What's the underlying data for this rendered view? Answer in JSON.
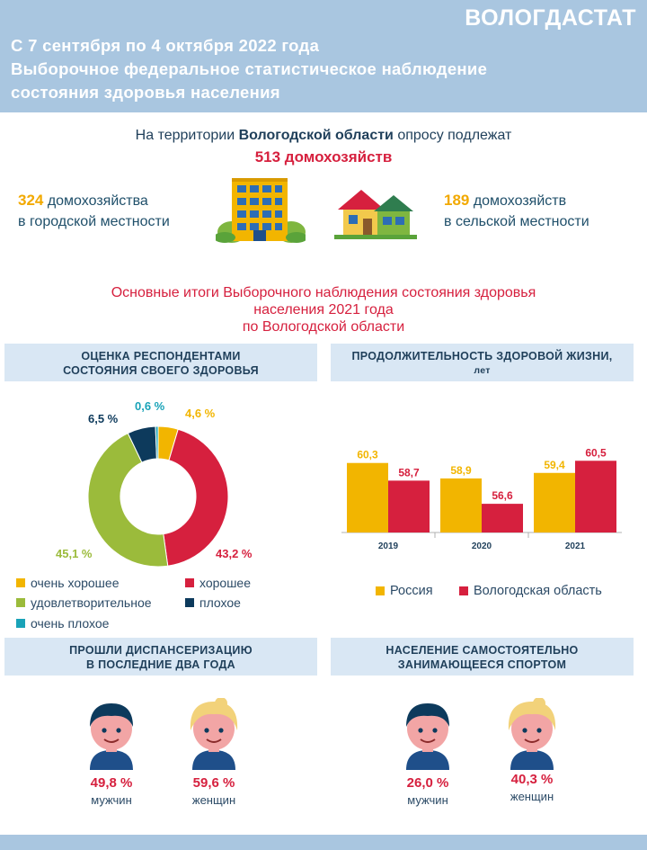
{
  "header": {
    "brand": "ВОЛОГДАСТАТ",
    "line1": "С 7 сентября по 4 октября 2022 года",
    "line2": "Выборочное федеральное статистическое наблюдение",
    "line3": "состояния здоровья населения"
  },
  "intro": {
    "prefix": "На территории ",
    "region": "Вологодской области",
    "suffix": " опросу подлежат",
    "total": "513 домохозяйств"
  },
  "urban": {
    "count": "324",
    "line1": " домохозяйства",
    "line2": "в городской местности"
  },
  "rural": {
    "count": "189",
    "line1": " домохозяйств",
    "line2": "в сельской  местности"
  },
  "results": {
    "line1": "Основные итоги Выборочного наблюдения состояния здоровья",
    "line2": "населения 2021 года",
    "line3": "по Вологодской области"
  },
  "panels": {
    "health_l1": "ОЦЕНКА РЕСПОНДЕНТАМИ",
    "health_l2": "СОСТОЯНИЯ СВОЕГО ЗДОРОВЬЯ",
    "life_l1": "ПРОДОЛЖИТЕЛЬНОСТЬ  ЗДОРОВОЙ ЖИЗНИ,",
    "life_l2": "лет",
    "disp_l1": "ПРОШЛИ ДИСПАНСЕРИЗАЦИЮ",
    "disp_l2": "В ПОСЛЕДНИЕ  ДВА ГОДА",
    "sport_l1": "НАСЕЛЕНИЕ  САМОСТОЯТЕЛЬНО",
    "sport_l2": "ЗАНИМАЮЩЕЕСЯ СПОРТОМ"
  },
  "chart_data": [
    {
      "type": "pie",
      "slices": [
        {
          "name": "очень хорошее",
          "value": 4.6,
          "label": "4,6 %",
          "color": "#f2b500"
        },
        {
          "name": "хорошее",
          "value": 43.2,
          "label": "43,2 %",
          "color": "#d6203e"
        },
        {
          "name": "удовлетворительное",
          "value": 45.1,
          "label": "45,1 %",
          "color": "#9bbb3b"
        },
        {
          "name": "плохое",
          "value": 6.5,
          "label": "6,5 %",
          "color": "#0d3a5c"
        },
        {
          "name": "очень плохое",
          "value": 0.6,
          "label": "0,6 %",
          "color": "#1aa3b8"
        }
      ]
    },
    {
      "type": "bar",
      "categories": [
        "2019",
        "2020",
        "2021"
      ],
      "series": [
        {
          "name": "Россия",
          "values": [
            60.3,
            58.9,
            59.4
          ],
          "labels": [
            "60,3",
            "58,9",
            "59,4"
          ],
          "color": "#f2b500"
        },
        {
          "name": "Вологодская область",
          "values": [
            58.7,
            56.6,
            60.5
          ],
          "labels": [
            "58,7",
            "56,6",
            "60,5"
          ],
          "color": "#d6203e"
        }
      ]
    }
  ],
  "dispanser": {
    "men_pct": "49,8 %",
    "men_label": "мужчин",
    "women_pct": "59,6 %",
    "women_label": "женщин"
  },
  "sport": {
    "men_pct": "26,0 %",
    "men_label": "мужчин",
    "women_pct": "40,3 %",
    "women_label": "женщин"
  }
}
